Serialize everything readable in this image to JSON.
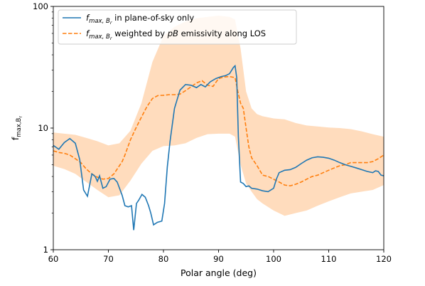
{
  "chart_data": {
    "type": "line",
    "xlabel": "Polar angle (deg)",
    "ylabel": "f",
    "ylabel_sub": "max,B",
    "ylabel_sub2": "r",
    "xlim": [
      60,
      120
    ],
    "ylim": [
      1,
      100
    ],
    "yscale": "log",
    "grid": false,
    "legend_position": "top-left",
    "x_ticks": [
      60,
      70,
      80,
      90,
      100,
      110,
      120
    ],
    "y_ticks": [
      1,
      10,
      100
    ],
    "x_tick_labels": [
      "60",
      "70",
      "80",
      "90",
      "100",
      "110",
      "120"
    ],
    "y_tick_labels": [
      "1",
      "10",
      "100"
    ],
    "colors": {
      "pos": "#1f77b4",
      "weighted": "#ff7f0e",
      "band": "#ffdcbd"
    },
    "series": [
      {
        "name": "f max,Br in plane-of-sky only",
        "legend_parts": [
          "f",
          "max, B",
          "r",
          " in plane-of-sky only"
        ],
        "style": "solid",
        "x": [
          60,
          61,
          62,
          63,
          64,
          64.8,
          65.5,
          66.2,
          67,
          67.6,
          68,
          68.4,
          69,
          69.6,
          70.3,
          71,
          71.6,
          72.5,
          73,
          73.6,
          74.2,
          74.6,
          75.1,
          75.5,
          76.1,
          76.7,
          77.3,
          77.7,
          78.2,
          78.9,
          79.7,
          80.2,
          80.7,
          81.2,
          82,
          83,
          84,
          85,
          86,
          86.8,
          87.6,
          88.5,
          89.5,
          90.5,
          91.3,
          92,
          92.7,
          93,
          93.3,
          93.6,
          94,
          94.5,
          95,
          95.5,
          96,
          97,
          98,
          99,
          100,
          100.5,
          101,
          102,
          103,
          104,
          105,
          106,
          107,
          108,
          109,
          110,
          111,
          112,
          113,
          114,
          115,
          116,
          117,
          118,
          118.5,
          119,
          119.5,
          120
        ],
        "values": [
          7.2,
          6.7,
          7.6,
          8.2,
          7.5,
          5.5,
          3.1,
          2.75,
          4.2,
          4.0,
          3.65,
          4.05,
          3.2,
          3.3,
          3.8,
          3.85,
          3.6,
          2.8,
          2.3,
          2.25,
          2.3,
          1.45,
          2.4,
          2.55,
          2.85,
          2.7,
          2.3,
          2.0,
          1.6,
          1.68,
          1.72,
          2.4,
          4.8,
          7.8,
          14.5,
          20.5,
          22.8,
          22.5,
          21.5,
          22.8,
          21.8,
          24.0,
          25.5,
          26.5,
          27.0,
          28.0,
          31.5,
          32.5,
          26.0,
          8.5,
          3.6,
          3.5,
          3.3,
          3.35,
          3.2,
          3.15,
          3.05,
          3.0,
          3.2,
          3.8,
          4.3,
          4.5,
          4.55,
          4.75,
          5.1,
          5.45,
          5.7,
          5.8,
          5.75,
          5.65,
          5.45,
          5.2,
          5.0,
          4.85,
          4.7,
          4.55,
          4.4,
          4.3,
          4.45,
          4.4,
          4.1,
          4.05
        ]
      },
      {
        "name": "f max,Br weighted by pB emissivity along LOS",
        "legend_parts": [
          "f",
          "max, B",
          "r",
          " weighted by ",
          "pB",
          " emissivity along LOS"
        ],
        "style": "dashed",
        "x": [
          60,
          61,
          62,
          63,
          64,
          65,
          66,
          67,
          68,
          69,
          70,
          71,
          72,
          72.5,
          73,
          74,
          75,
          76,
          77,
          78,
          79,
          80,
          81,
          82,
          83,
          84,
          85,
          86,
          87,
          88,
          89,
          90,
          91,
          92,
          93,
          93.5,
          94,
          94.5,
          95,
          95.5,
          96,
          97,
          98,
          99,
          100,
          101,
          102,
          103,
          104,
          105,
          106,
          107,
          108,
          109,
          110,
          111,
          112,
          113,
          114,
          115,
          116,
          117,
          118,
          119,
          120
        ],
        "values": [
          6.5,
          6.3,
          6.2,
          6.0,
          5.6,
          5.2,
          4.6,
          4.2,
          3.95,
          3.8,
          3.85,
          4.2,
          4.9,
          5.3,
          6.0,
          8.0,
          10.0,
          12.3,
          15.0,
          17.5,
          18.5,
          18.6,
          18.8,
          18.8,
          19.0,
          20.3,
          21.8,
          23.5,
          24.5,
          22.5,
          22.0,
          25.5,
          26.3,
          26.5,
          26.0,
          20.0,
          16.0,
          14.5,
          10.0,
          7.0,
          5.7,
          4.9,
          4.1,
          4.0,
          3.8,
          3.6,
          3.4,
          3.35,
          3.45,
          3.6,
          3.8,
          4.0,
          4.1,
          4.3,
          4.5,
          4.7,
          4.9,
          5.0,
          5.2,
          5.2,
          5.2,
          5.2,
          5.3,
          5.6,
          6.0
        ]
      }
    ],
    "band": {
      "x": [
        60,
        62,
        64,
        66,
        68,
        70,
        72,
        74,
        76,
        78,
        80,
        82,
        84,
        86,
        88,
        90,
        92,
        93,
        94,
        95,
        96,
        97,
        98,
        100,
        102,
        104,
        106,
        108,
        110,
        112,
        114,
        116,
        118,
        120
      ],
      "lower": [
        4.9,
        4.6,
        4.2,
        3.6,
        3.1,
        2.7,
        2.8,
        3.7,
        5.1,
        6.5,
        7.1,
        7.2,
        7.5,
        8.3,
        8.9,
        9.0,
        9.0,
        8.5,
        5.0,
        3.5,
        3.0,
        2.6,
        2.4,
        2.1,
        1.9,
        2.0,
        2.1,
        2.3,
        2.5,
        2.7,
        2.9,
        3.0,
        3.1,
        3.4
      ],
      "upper": [
        9.2,
        9.0,
        8.8,
        8.3,
        7.8,
        7.2,
        7.5,
        9.5,
        16.0,
        35.0,
        57.0,
        68.0,
        75.0,
        80.0,
        82.0,
        84.0,
        82.0,
        78.0,
        45.0,
        20.0,
        14.5,
        13.0,
        12.5,
        12.0,
        11.8,
        11.0,
        10.5,
        10.3,
        10.1,
        10.0,
        9.8,
        9.4,
        8.9,
        8.5
      ]
    }
  }
}
